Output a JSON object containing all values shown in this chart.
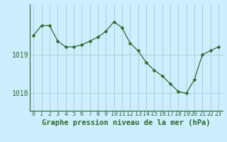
{
  "hours": [
    0,
    1,
    2,
    3,
    4,
    5,
    6,
    7,
    8,
    9,
    10,
    11,
    12,
    13,
    14,
    15,
    16,
    17,
    18,
    19,
    20,
    21,
    22,
    23
  ],
  "pressure": [
    1019.5,
    1019.75,
    1019.75,
    1019.35,
    1019.2,
    1019.2,
    1019.25,
    1019.35,
    1019.45,
    1019.6,
    1019.85,
    1019.7,
    1019.3,
    1019.1,
    1018.8,
    1018.6,
    1018.45,
    1018.25,
    1018.05,
    1018.0,
    1018.35,
    1019.0,
    1019.1,
    1019.2
  ],
  "line_color": "#2d6a2d",
  "marker": "D",
  "marker_size": 2.5,
  "bg_color": "#cceeff",
  "grid_color": "#aacccc",
  "xlabel": "Graphe pression niveau de la mer (hPa)",
  "xlabel_color": "#2d6a2d",
  "xlabel_fontsize": 7.5,
  "yticks": [
    1018,
    1019
  ],
  "ylim": [
    1017.55,
    1020.3
  ],
  "xlim": [
    -0.5,
    23.5
  ],
  "tick_color": "#2d6a2d",
  "tick_fontsize": 6,
  "spine_color": "#2d6a2d",
  "figsize": [
    3.2,
    2.0
  ],
  "dpi": 100
}
